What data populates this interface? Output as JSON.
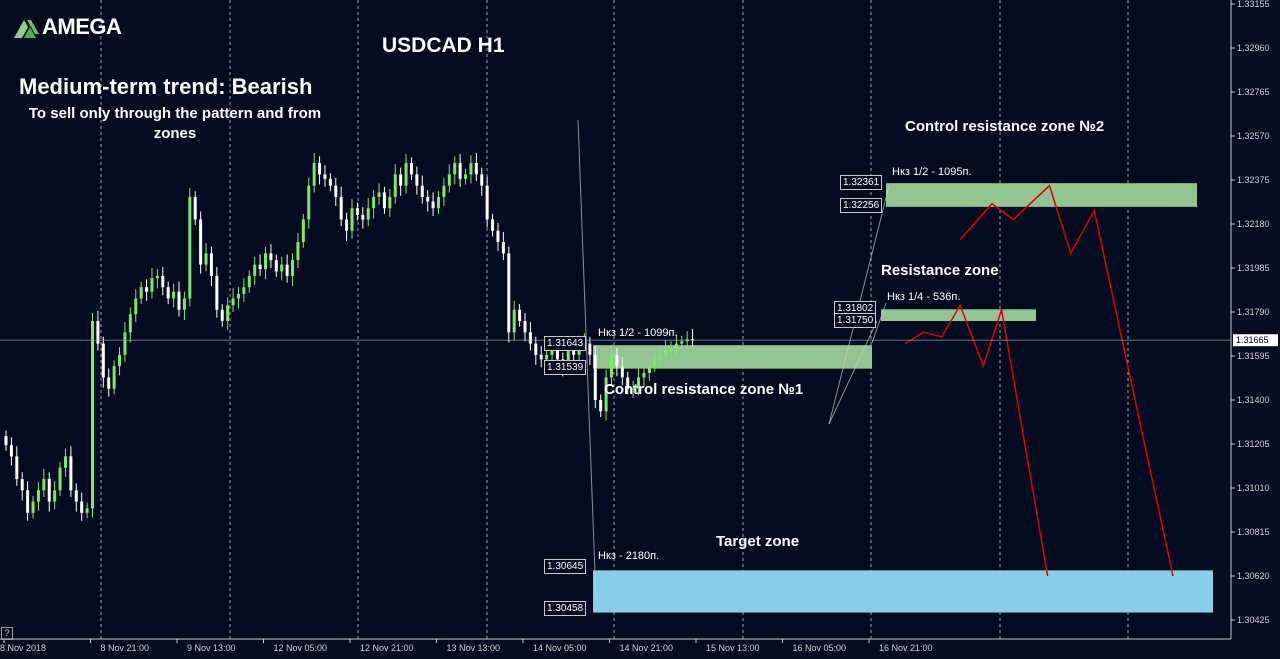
{
  "logo": {
    "text": "AMEGA",
    "icon": "amega-logo-icon"
  },
  "header": {
    "title": "USDCAD H1",
    "trend": "Medium-term trend: Bearish",
    "trend_note": "To sell only through the pattern and from zones"
  },
  "price_axis": {
    "ticks": [
      "1.33155",
      "1.32960",
      "1.32765",
      "1.32570",
      "1.32375",
      "1.32180",
      "1.31985",
      "1.31790",
      "1.31595",
      "1.31400",
      "1.31205",
      "1.31010",
      "1.30815",
      "1.30620",
      "1.30425"
    ],
    "current_price": "1.31665"
  },
  "time_axis": {
    "labels": [
      "8 Nov 2018",
      "8 Nov 21:00",
      "9 Nov 13:00",
      "12 Nov 05:00",
      "12 Nov 21:00",
      "13 Nov 13:00",
      "14 Nov 05:00",
      "14 Nov 21:00",
      "15 Nov 13:00",
      "16 Nov 05:00",
      "16 Nov 21:00"
    ]
  },
  "zones": {
    "control1": {
      "title": "Control resistance zone №1",
      "note": "Нкз 1/2 - 1099п.",
      "upper": "1.31643",
      "lower": "1.31539"
    },
    "control2": {
      "title": "Control resistance zone №2",
      "note": "Нкз 1/2 - 1095п.",
      "upper": "1.32361",
      "lower": "1.32256"
    },
    "resistance": {
      "title": "Resistance zone",
      "note": "Нкз 1/4 - 536п.",
      "upper": "1.31802",
      "lower": "1.31750"
    },
    "target": {
      "title": "Target zone",
      "note": "Нкз - 2180п.",
      "upper": "1.30645",
      "lower": "1.30458"
    }
  },
  "help_button": "?",
  "colors": {
    "background": "#020b20",
    "bull_candle": "#7de86a",
    "bear_candle": "#ffffff",
    "grid": "#c8c8c8",
    "zone_green": "#93c592",
    "zone_blue": "#87ceeb",
    "forecast": "#e00000"
  },
  "chart_data": {
    "type": "candlestick",
    "symbol": "USDCAD",
    "timeframe": "H1",
    "ylim": [
      1.3036,
      1.3316
    ],
    "y_ticks": [
      1.33155,
      1.3296,
      1.32765,
      1.3257,
      1.32375,
      1.3218,
      1.31985,
      1.3179,
      1.31595,
      1.314,
      1.31205,
      1.3101,
      1.30815,
      1.3062,
      1.30425
    ],
    "x_labels": [
      "8 Nov 2018",
      "8 Nov 21:00",
      "9 Nov 13:00",
      "12 Nov 05:00",
      "12 Nov 21:00",
      "13 Nov 13:00",
      "14 Nov 05:00",
      "14 Nov 21:00",
      "15 Nov 13:00",
      "16 Nov 05:00",
      "16 Nov 21:00"
    ],
    "bars_per_label": 16,
    "current_price": 1.31665,
    "closes": [
      1.312,
      1.3115,
      1.3105,
      1.31,
      1.309,
      1.3095,
      1.31,
      1.3105,
      1.3095,
      1.31,
      1.311,
      1.3115,
      1.31,
      1.3095,
      1.309,
      1.3092,
      1.3175,
      1.3165,
      1.315,
      1.3145,
      1.3155,
      1.316,
      1.317,
      1.3178,
      1.3185,
      1.319,
      1.3188,
      1.3194,
      1.3195,
      1.319,
      1.3185,
      1.3188,
      1.318,
      1.3185,
      1.323,
      1.322,
      1.32,
      1.3205,
      1.3195,
      1.318,
      1.3175,
      1.3182,
      1.3185,
      1.3187,
      1.319,
      1.3195,
      1.32,
      1.3198,
      1.3205,
      1.3202,
      1.3197,
      1.32,
      1.3195,
      1.3202,
      1.321,
      1.322,
      1.3235,
      1.3245,
      1.324,
      1.3238,
      1.3235,
      1.323,
      1.322,
      1.3215,
      1.3225,
      1.3222,
      1.322,
      1.3225,
      1.323,
      1.3232,
      1.3225,
      1.323,
      1.324,
      1.3235,
      1.3245,
      1.324,
      1.3235,
      1.323,
      1.3228,
      1.3225,
      1.323,
      1.3235,
      1.324,
      1.3245,
      1.3238,
      1.324,
      1.3245,
      1.324,
      1.3235,
      1.322,
      1.3215,
      1.321,
      1.3205,
      1.317,
      1.318,
      1.3175,
      1.317,
      1.3165,
      1.316,
      1.3158,
      1.316,
      1.3162,
      1.3158,
      1.3155,
      1.3162,
      1.316,
      1.3165,
      1.3165,
      1.316,
      1.314,
      1.3135,
      1.315,
      1.316,
      1.3155,
      1.315,
      1.3145,
      1.3145,
      1.315,
      1.3152,
      1.3155,
      1.3158,
      1.316,
      1.3162,
      1.3163,
      1.3165,
      1.3166,
      1.3167,
      1.31665
    ],
    "zones": [
      {
        "name": "Control resistance zone №1",
        "from": 1.31539,
        "to": 1.31643
      },
      {
        "name": "Control resistance zone №2",
        "from": 1.32256,
        "to": 1.32361
      },
      {
        "name": "Resistance zone",
        "from": 1.3175,
        "to": 1.31802
      },
      {
        "name": "Target zone",
        "from": 1.30458,
        "to": 1.30645
      }
    ],
    "forecast_paths": [
      [
        [
          0.0,
          1.3165
        ],
        [
          0.08,
          1.317
        ],
        [
          0.16,
          1.3168
        ],
        [
          0.24,
          1.3182
        ],
        [
          0.34,
          1.3155
        ],
        [
          0.42,
          1.318
        ],
        [
          0.62,
          1.3062
        ]
      ],
      [
        [
          0.0,
          1.3211
        ],
        [
          0.15,
          1.3227
        ],
        [
          0.25,
          1.322
        ],
        [
          0.42,
          1.3235
        ],
        [
          0.52,
          1.3205
        ],
        [
          0.63,
          1.3224
        ],
        [
          1.0,
          1.3062
        ]
      ]
    ]
  }
}
